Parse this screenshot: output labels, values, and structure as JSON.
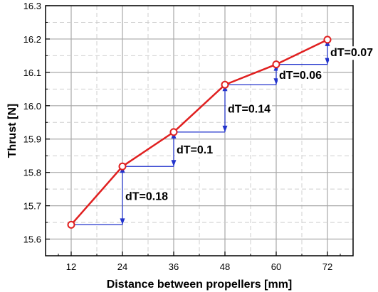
{
  "chart_data": {
    "type": "line",
    "title": "",
    "xlabel": "Distance between propellers [mm]",
    "ylabel": "Thrust [N]",
    "xlim": [
      6,
      78
    ],
    "ylim": [
      15.55,
      16.3
    ],
    "x_ticks": [
      "12",
      "24",
      "36",
      "48",
      "60",
      "72"
    ],
    "y_ticks": [
      "15.6",
      "15.7",
      "15.8",
      "15.9",
      "16.0",
      "16.1",
      "16.2",
      "16.3"
    ],
    "grid": true,
    "series": [
      {
        "x": [
          12,
          24,
          36,
          48,
          60,
          72
        ],
        "y": [
          15.643,
          15.818,
          15.921,
          16.063,
          16.124,
          16.198
        ],
        "color": "#e02020",
        "marker": "open-circle"
      }
    ],
    "annotations": [
      {
        "label": "dT=0.18",
        "x_from": 12,
        "x_to": 24,
        "y_from": 15.643,
        "y_to": 15.818,
        "color": "#2233cc"
      },
      {
        "label": "dT=0.1",
        "x_from": 24,
        "x_to": 36,
        "y_from": 15.818,
        "y_to": 15.921,
        "color": "#2233cc"
      },
      {
        "label": "dT=0.14",
        "x_from": 36,
        "x_to": 48,
        "y_from": 15.921,
        "y_to": 16.063,
        "color": "#2233cc"
      },
      {
        "label": "dT=0.06",
        "x_from": 48,
        "x_to": 60,
        "y_from": 16.063,
        "y_to": 16.124,
        "color": "#2233cc"
      },
      {
        "label": "dT=0.07",
        "x_from": 60,
        "x_to": 72,
        "y_from": 16.124,
        "y_to": 16.198,
        "color": "#2233cc"
      }
    ]
  }
}
